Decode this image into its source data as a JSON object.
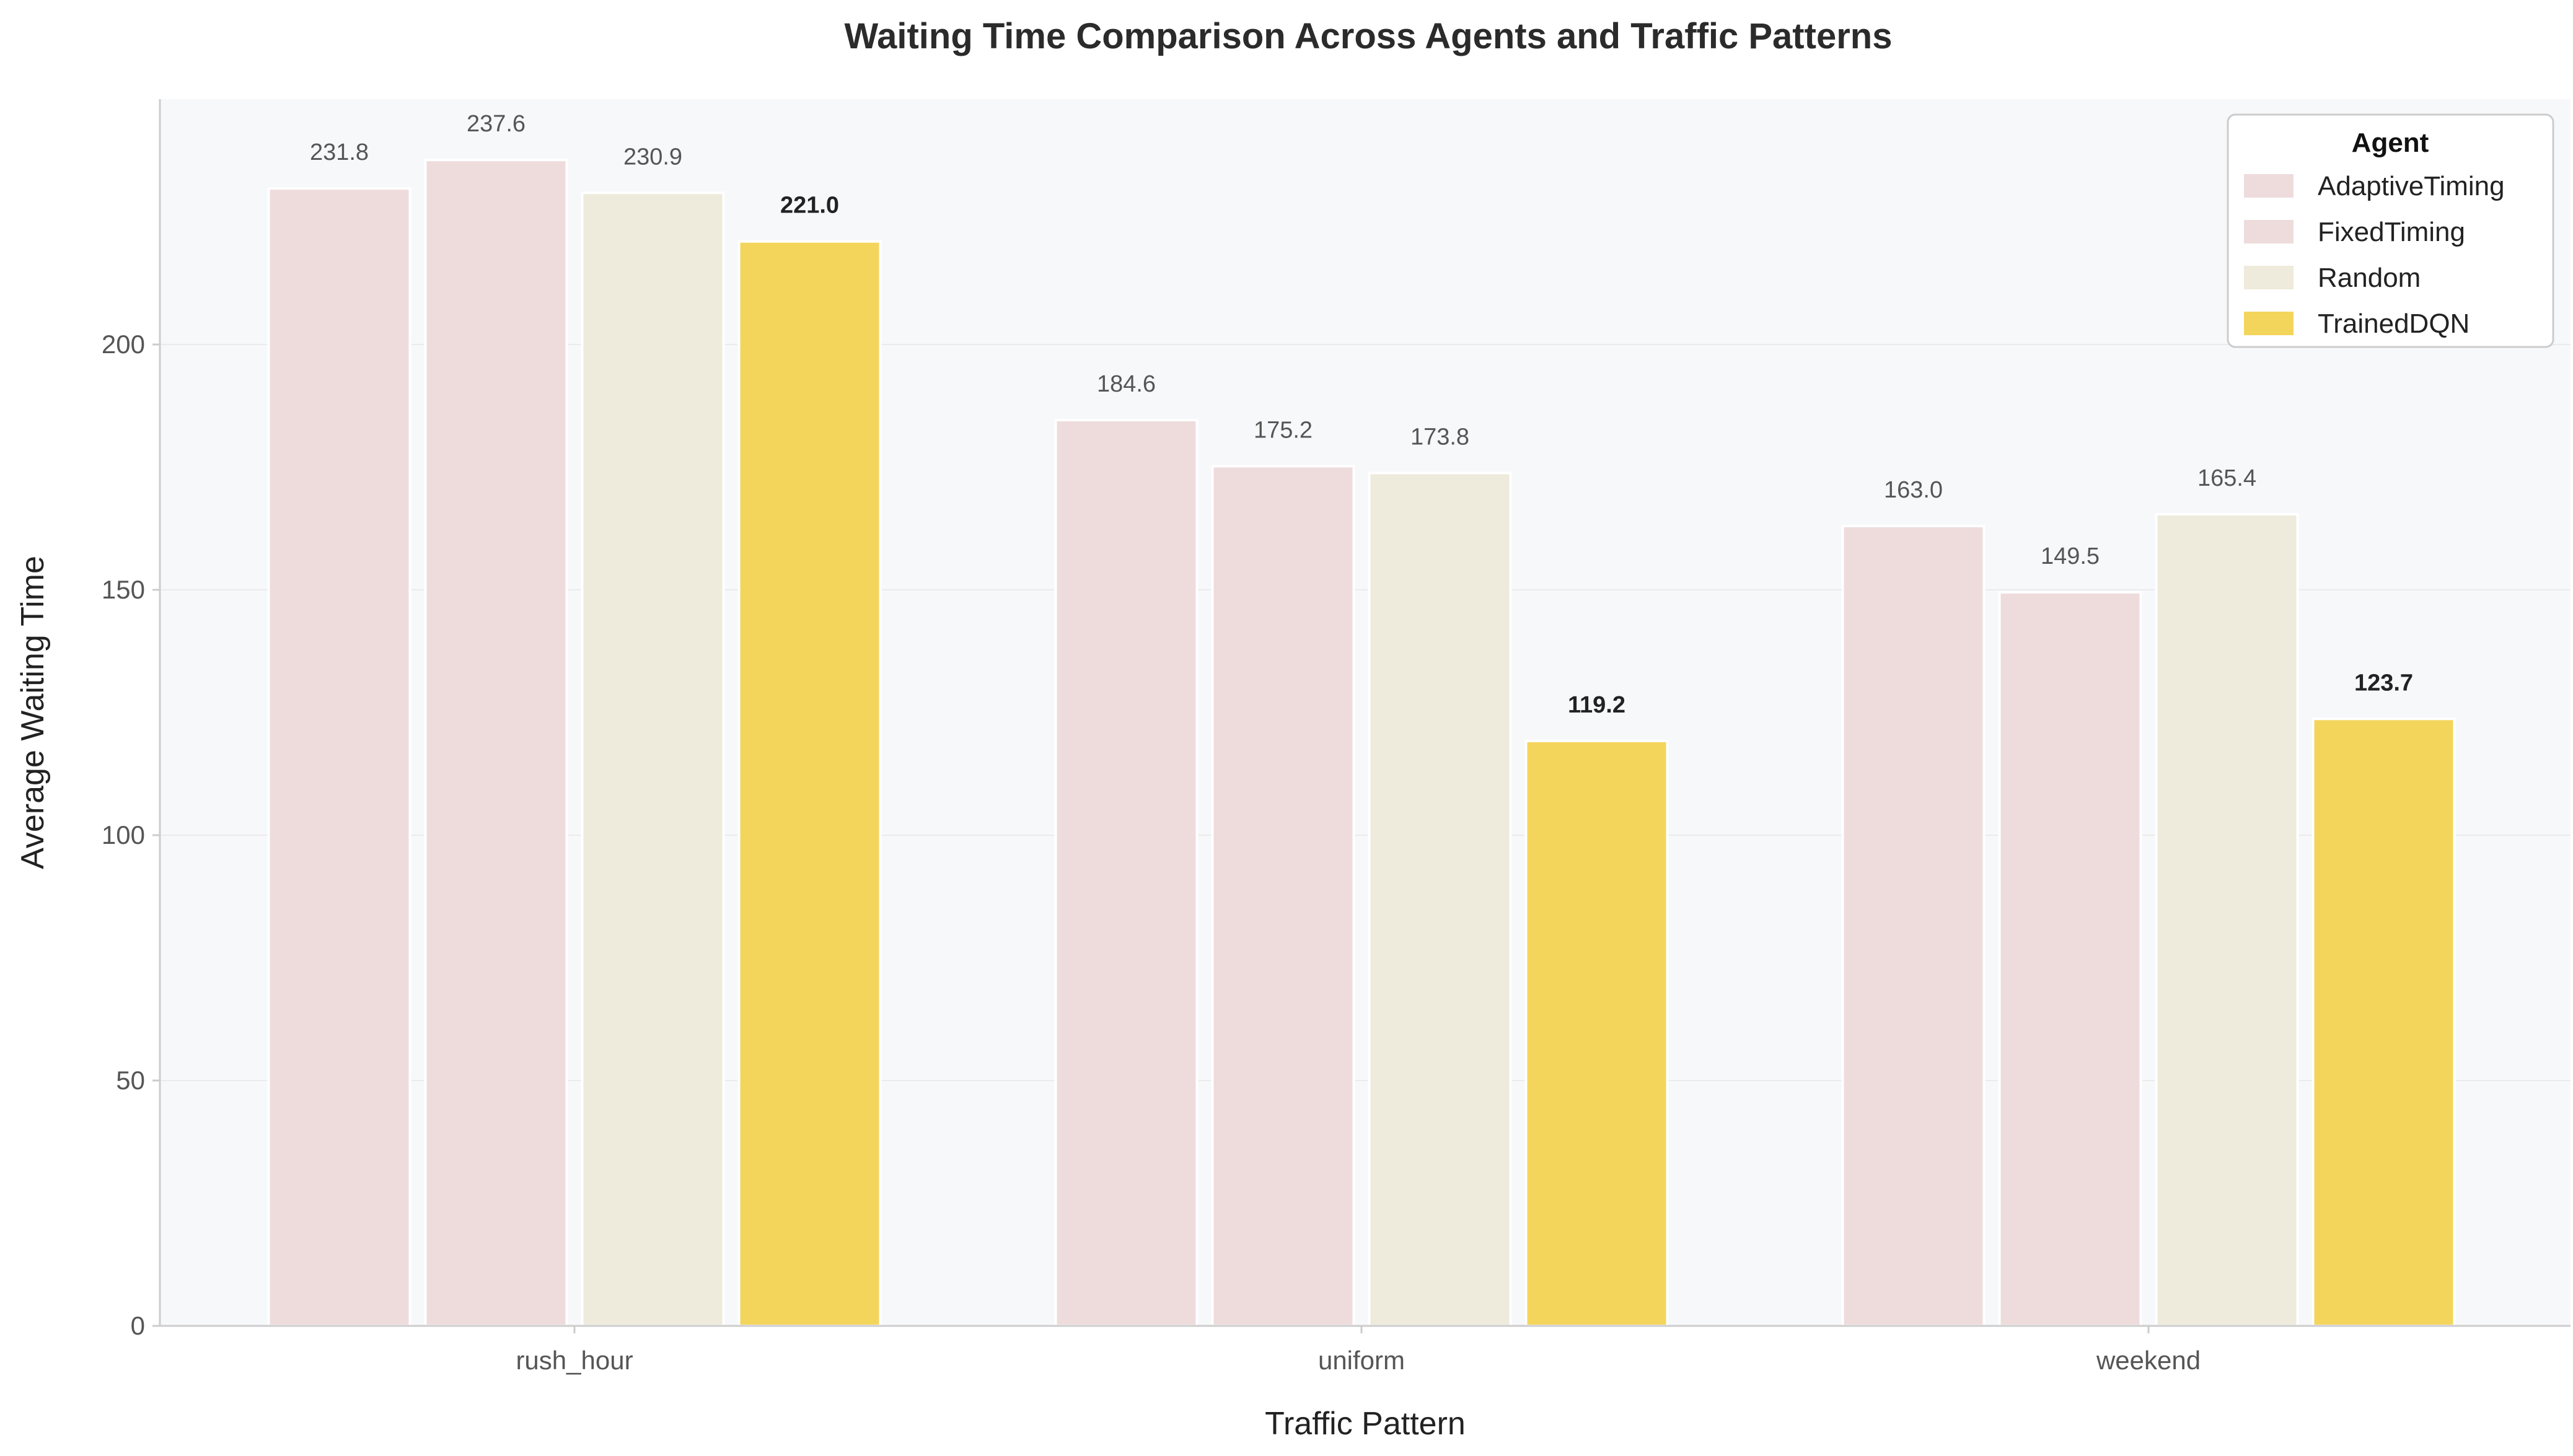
{
  "chart_data": {
    "type": "bar",
    "title": "Waiting Time Comparison Across Agents and Traffic Patterns",
    "xlabel": "Traffic Pattern",
    "ylabel": "Average Waiting Time",
    "categories": [
      "rush_hour",
      "uniform",
      "weekend"
    ],
    "series": [
      {
        "name": "AdaptiveTiming",
        "color": "#eedcdd",
        "values": [
          231.8,
          184.6,
          163.0
        ],
        "labels": [
          "231.8",
          "184.6",
          "163.0"
        ],
        "highlight": false
      },
      {
        "name": "FixedTiming",
        "color": "#eedcdd",
        "values": [
          237.6,
          175.2,
          149.5
        ],
        "labels": [
          "237.6",
          "175.2",
          "149.5"
        ],
        "highlight": false
      },
      {
        "name": "Random",
        "color": "#eeebdc",
        "values": [
          230.9,
          173.8,
          165.4
        ],
        "labels": [
          "230.9",
          "173.8",
          "165.4"
        ],
        "highlight": false
      },
      {
        "name": "TrainedDQN",
        "color": "#f4d55c",
        "values": [
          221.0,
          119.2,
          123.7
        ],
        "labels": [
          "221.0",
          "119.2",
          "123.7"
        ],
        "highlight": true
      }
    ],
    "ylim": [
      0,
      250
    ],
    "yticks": [
      0,
      50,
      100,
      150,
      200
    ],
    "ytick_labels": [
      "0",
      "50",
      "100",
      "150",
      "200"
    ],
    "grid": true,
    "legend": {
      "title": "Agent",
      "placement": "top-right"
    },
    "colors": {
      "plot_background": "#f7f8fa",
      "axis_line": "#cccccc",
      "grid": "#ebebeb",
      "bar_edge": "#ffffff"
    }
  }
}
